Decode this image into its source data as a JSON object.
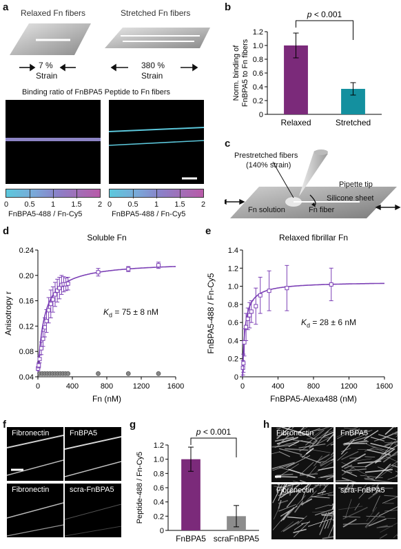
{
  "panel_a": {
    "label": "a",
    "relaxed_title": "Relaxed Fn fibers",
    "stretched_title": "Stretched Fn fibers",
    "relaxed_strain_value": "7 %",
    "relaxed_strain_word": "Strain",
    "stretched_strain_value": "380 %",
    "stretched_strain_word": "Strain",
    "binding_title": "Binding ratio of FnBPA5 Peptide to Fn fibers",
    "colorbar_ticks": [
      "0",
      "0.5",
      "1",
      "1.5",
      "2"
    ],
    "colorbar_label": "FnBPA5-488 / Fn-Cy5"
  },
  "panel_b": {
    "label": "b",
    "p_value": "p < 0.001",
    "ylabel_line1": "Norm. binding of",
    "ylabel_line2": "FnBPA5 to Fn fibers"
  },
  "panel_c": {
    "label": "c",
    "prestretched_line1": "Prestretched fibers",
    "prestretched_line2": "(140% strain)",
    "pipette_tip": "Pipette tip",
    "silicone_sheet": "Silicone sheet",
    "fn_solution": "Fn solution",
    "fn_fiber": "Fn fiber"
  },
  "panel_d": {
    "label": "d",
    "kd_text": "= 75 ± 8 nM"
  },
  "panel_e": {
    "label": "e",
    "kd_text": "= 28 ± 6 nM"
  },
  "panel_f": {
    "label": "f",
    "tl": "Fibronectin",
    "tr": "FnBPA5",
    "bl": "Fibronectin",
    "br": "scra-FnBPA5"
  },
  "panel_g": {
    "label": "g",
    "p_value": "p < 0.001"
  },
  "panel_h": {
    "label": "h",
    "tl": "Fibronectin",
    "tr": "FnBPA5",
    "bl": "Fibronectin",
    "br": "scra-FnBPA5"
  },
  "chart_data": [
    {
      "id": "b",
      "type": "bar",
      "categories": [
        "Relaxed",
        "Stretched"
      ],
      "values": [
        1.0,
        0.37
      ],
      "errors": [
        0.18,
        0.09
      ],
      "colors": [
        "#7b2a7a",
        "#14909f"
      ],
      "ylabel": "Norm. binding of FnBPA5 to Fn fibers",
      "ylim": [
        0,
        1.2
      ],
      "yticks": [
        "0",
        "0.2",
        "0.4",
        "0.6",
        "0.8",
        "1.0",
        "1.2"
      ]
    },
    {
      "id": "d",
      "type": "scatter",
      "title": "Soluble Fn",
      "xlabel": "Fn (nM)",
      "ylabel": "Anisotropy r",
      "xlim": [
        0,
        1600
      ],
      "ylim": [
        0.04,
        0.24
      ],
      "xticks": [
        "0",
        "400",
        "800",
        "1200",
        "1600"
      ],
      "yticks": [
        "0.04",
        "0.08",
        "0.12",
        "0.16",
        "0.20",
        "0.24"
      ],
      "fit": {
        "kd": 75,
        "bottom": 0.045,
        "top": 0.222
      },
      "series": [
        {
          "x": [
            2,
            10,
            20,
            40,
            60,
            80,
            100,
            125,
            150,
            175,
            200,
            225,
            250,
            275,
            300,
            325,
            350,
            700,
            1050,
            1400
          ],
          "y": [
            0.053,
            0.058,
            0.068,
            0.085,
            0.1,
            0.118,
            0.128,
            0.145,
            0.155,
            0.162,
            0.17,
            0.176,
            0.18,
            0.185,
            0.186,
            0.186,
            0.187,
            0.205,
            0.21,
            0.216
          ],
          "err": [
            0.003,
            0.004,
            0.006,
            0.01,
            0.012,
            0.015,
            0.018,
            0.02,
            0.022,
            0.02,
            0.019,
            0.018,
            0.017,
            0.015,
            0.012,
            0.01,
            0.01,
            0.006,
            0.004,
            0.005
          ],
          "color": "#7b3fb5"
        },
        {
          "x": [
            20,
            50,
            80,
            110,
            140,
            170,
            200,
            230,
            260,
            290,
            320,
            350,
            700,
            1050,
            1400
          ],
          "y": [
            0.045,
            0.045,
            0.045,
            0.045,
            0.045,
            0.045,
            0.045,
            0.045,
            0.045,
            0.045,
            0.045,
            0.045,
            0.045,
            0.045,
            0.045
          ],
          "color": "#888888"
        }
      ]
    },
    {
      "id": "e",
      "type": "scatter",
      "title": "Relaxed fibrillar Fn",
      "xlabel": "FnBPA5-Alexa488 (nM)",
      "ylabel": "FnBPA5-488 / Fn-Cy5",
      "xlim": [
        0,
        1600
      ],
      "ylim": [
        0,
        1.4
      ],
      "xticks": [
        "0",
        "400",
        "800",
        "1200",
        "1600"
      ],
      "yticks": [
        "0",
        "0.2",
        "0.4",
        "0.6",
        "0.8",
        "1.0",
        "1.2",
        "1.4"
      ],
      "fit": {
        "kd": 28,
        "bmax": 1.05
      },
      "series": [
        {
          "x": [
            5,
            10,
            20,
            40,
            60,
            80,
            100,
            150,
            200,
            300,
            500,
            1000
          ],
          "y": [
            0.1,
            0.15,
            0.38,
            0.55,
            0.64,
            0.68,
            0.72,
            0.78,
            0.9,
            0.95,
            0.98,
            1.02
          ],
          "err": [
            0.08,
            0.1,
            0.15,
            0.15,
            0.12,
            0.14,
            0.12,
            0.2,
            0.2,
            0.22,
            0.25,
            0.18
          ],
          "color": "#7b3fb5"
        }
      ]
    },
    {
      "id": "g",
      "type": "bar",
      "categories": [
        "FnBPA5",
        "scraFnBPA5"
      ],
      "values": [
        1.0,
        0.2
      ],
      "errors": [
        0.17,
        0.15
      ],
      "colors": [
        "#7b2a7a",
        "#8c8c8c"
      ],
      "ylabel": "Peptide-488 / Fn-Cy5",
      "ylim": [
        0,
        1.2
      ],
      "yticks": [
        "0",
        "0.2",
        "0.4",
        "0.6",
        "0.8",
        "1.0",
        "1.2"
      ]
    }
  ]
}
